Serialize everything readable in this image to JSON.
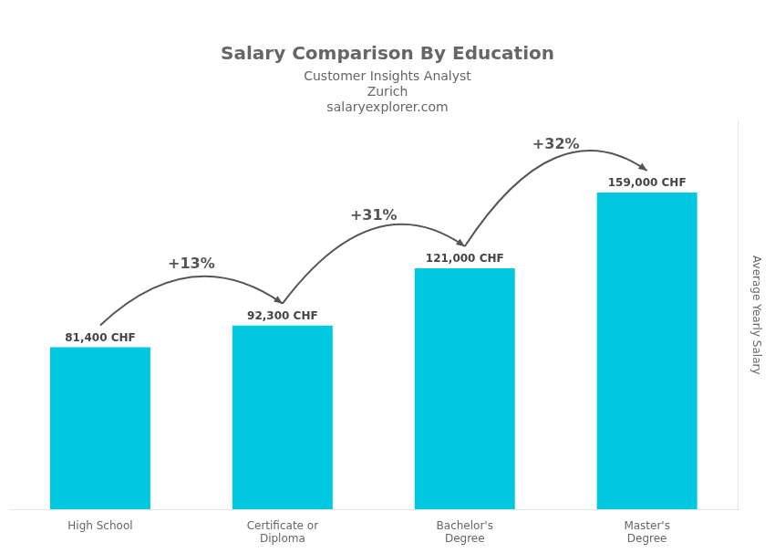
{
  "chart_data": {
    "type": "bar",
    "title": "Salary Comparison By Education",
    "subtitle": "Customer Insights Analyst",
    "ylabel": "Average Yearly Salary",
    "categories": [
      "High School",
      "Certificate or\nDiploma",
      "Bachelor's\nDegree",
      "Master's\nDegree"
    ],
    "values": [
      81400,
      92300,
      121000,
      159000
    ],
    "value_labels": [
      "81,400 CHF",
      "92,300 CHF",
      "121,000 CHF",
      "159,000 CHF"
    ],
    "color": "#00c8e0",
    "ylim": [
      0,
      195000
    ],
    "grid": false,
    "tick_labels": "x",
    "data_labels": true,
    "annotations": [
      {
        "text": "+13%",
        "from": "High School",
        "to": "Certificate or\nDiploma"
      },
      {
        "text": "+31%",
        "from": "Certificate or\nDiploma",
        "to": "Bachelor's\nDegree"
      },
      {
        "text": "+32%",
        "from": "Bachelor's\nDegree",
        "to": "Master's\nDegree"
      },
      {
        "text": "Zurich"
      },
      {
        "text": "salaryexplorer.com"
      }
    ]
  }
}
